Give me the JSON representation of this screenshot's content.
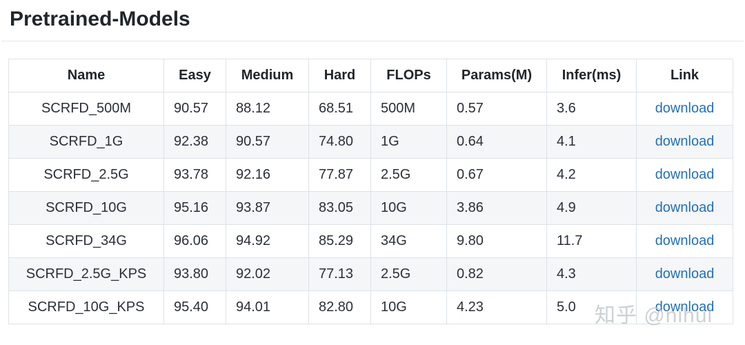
{
  "title": "Pretrained-Models",
  "table": {
    "columns": [
      {
        "key": "name",
        "label": "Name"
      },
      {
        "key": "easy",
        "label": "Easy"
      },
      {
        "key": "medium",
        "label": "Medium"
      },
      {
        "key": "hard",
        "label": "Hard"
      },
      {
        "key": "flops",
        "label": "FLOPs"
      },
      {
        "key": "params",
        "label": "Params(M)"
      },
      {
        "key": "infer",
        "label": "Infer(ms)"
      },
      {
        "key": "link",
        "label": "Link"
      }
    ],
    "rows": [
      {
        "name": "SCRFD_500M",
        "easy": "90.57",
        "medium": "88.12",
        "hard": "68.51",
        "flops": "500M",
        "params": "0.57",
        "infer": "3.6",
        "link": "download"
      },
      {
        "name": "SCRFD_1G",
        "easy": "92.38",
        "medium": "90.57",
        "hard": "74.80",
        "flops": "1G",
        "params": "0.64",
        "infer": "4.1",
        "link": "download"
      },
      {
        "name": "SCRFD_2.5G",
        "easy": "93.78",
        "medium": "92.16",
        "hard": "77.87",
        "flops": "2.5G",
        "params": "0.67",
        "infer": "4.2",
        "link": "download"
      },
      {
        "name": "SCRFD_10G",
        "easy": "95.16",
        "medium": "93.87",
        "hard": "83.05",
        "flops": "10G",
        "params": "3.86",
        "infer": "4.9",
        "link": "download"
      },
      {
        "name": "SCRFD_34G",
        "easy": "96.06",
        "medium": "94.92",
        "hard": "85.29",
        "flops": "34G",
        "params": "9.80",
        "infer": "11.7",
        "link": "download"
      },
      {
        "name": "SCRFD_2.5G_KPS",
        "easy": "93.80",
        "medium": "92.02",
        "hard": "77.13",
        "flops": "2.5G",
        "params": "0.82",
        "infer": "4.3",
        "link": "download"
      },
      {
        "name": "SCRFD_10G_KPS",
        "easy": "95.40",
        "medium": "94.01",
        "hard": "82.80",
        "flops": "10G",
        "params": "4.23",
        "infer": "5.0",
        "link": "download"
      }
    ]
  },
  "watermark": {
    "text": "知乎 @nihui"
  },
  "colors": {
    "link": "#2470b6",
    "stripe": "#f4f6f8",
    "border": "#dde2e8",
    "text": "#2b2f36",
    "heading": "#21262b",
    "watermark": "#c4c9cd"
  }
}
